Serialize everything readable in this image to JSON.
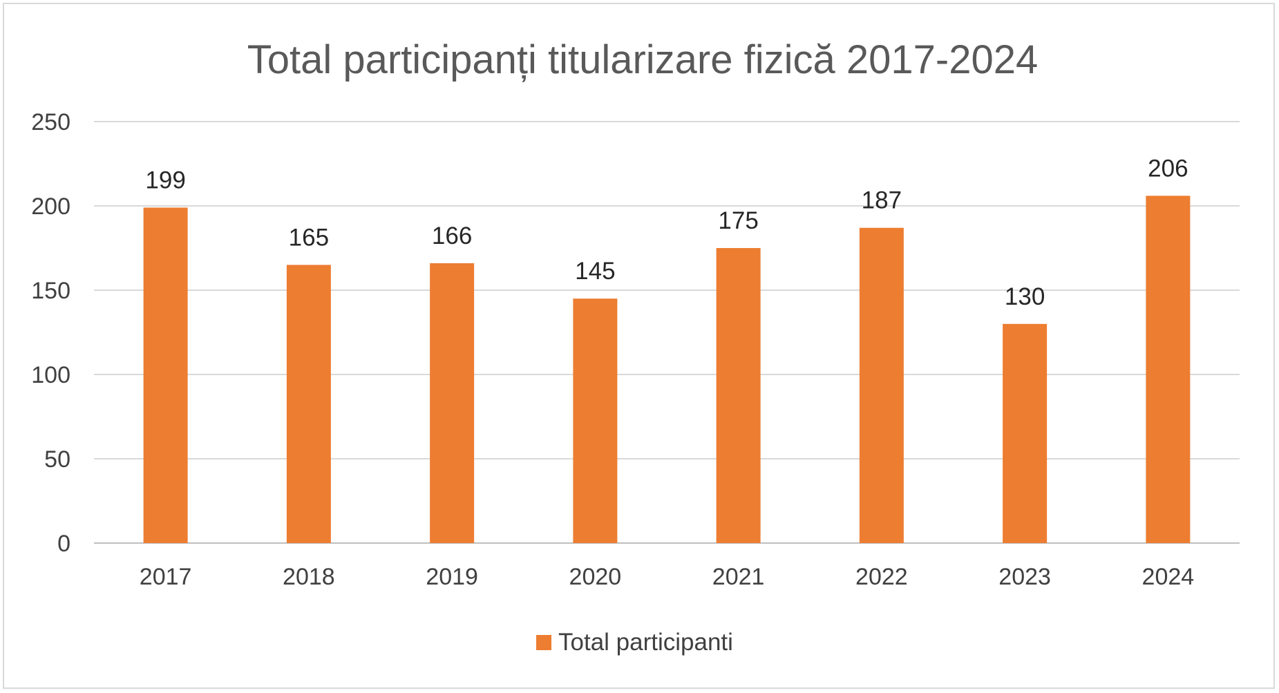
{
  "chart_data": {
    "type": "bar",
    "title": "Total participanți titularizare fizică 2017-2024",
    "xlabel": "",
    "ylabel": "",
    "categories": [
      "2017",
      "2018",
      "2019",
      "2020",
      "2021",
      "2022",
      "2023",
      "2024"
    ],
    "series": [
      {
        "name": "Total participanti",
        "values": [
          199,
          165,
          166,
          145,
          175,
          187,
          130,
          206
        ],
        "color": "#ed7d31"
      }
    ],
    "ylim": [
      0,
      250
    ],
    "yticks": [
      "0",
      "50",
      "100",
      "150",
      "200",
      "250"
    ],
    "grid": true,
    "data_labels": true,
    "legend": "bottom-center"
  }
}
